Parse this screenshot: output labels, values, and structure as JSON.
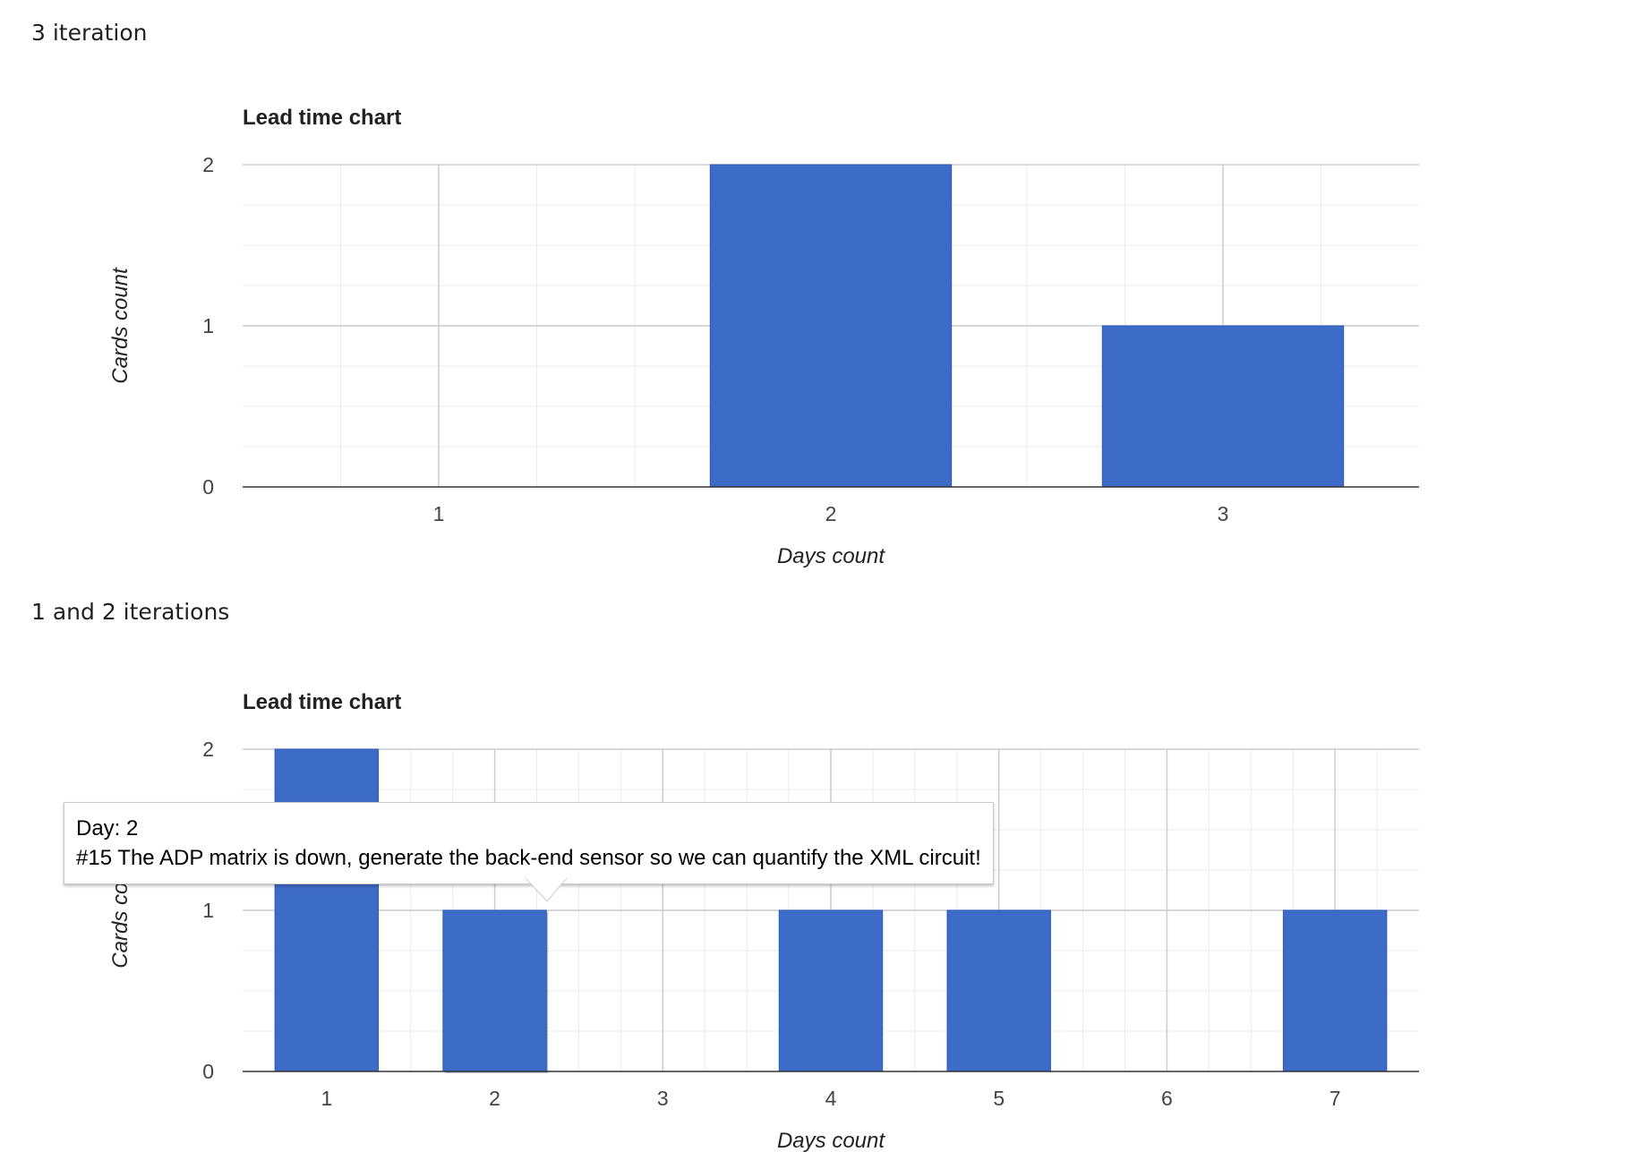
{
  "sections": [
    {
      "heading": "3 iteration",
      "chart_data": {
        "type": "bar",
        "title": "Lead time chart",
        "xlabel": "Days count",
        "ylabel": "Cards count",
        "categories": [
          "1",
          "2",
          "3"
        ],
        "values": [
          0,
          2,
          1
        ],
        "ylim": [
          0,
          2
        ],
        "yticks": [
          0,
          1,
          2
        ],
        "grid": true,
        "bar_color": "#3d6bc8"
      }
    },
    {
      "heading": "1 and 2 iterations",
      "chart_data": {
        "type": "bar",
        "title": "Lead time chart",
        "xlabel": "Days count",
        "ylabel": "Cards count",
        "categories": [
          "1",
          "2",
          "3",
          "4",
          "5",
          "6",
          "7"
        ],
        "values": [
          2,
          1,
          0,
          1,
          1,
          0,
          1
        ],
        "ylim": [
          0,
          2
        ],
        "yticks": [
          0,
          1,
          2
        ],
        "grid": true,
        "bar_color": "#3d6bc8",
        "highlighted_category": "2"
      },
      "tooltip": {
        "line1": "Day: 2",
        "line2": "#15 The ADP matrix is down, generate the back-end sensor so we can quantify the XML circuit!"
      }
    }
  ]
}
